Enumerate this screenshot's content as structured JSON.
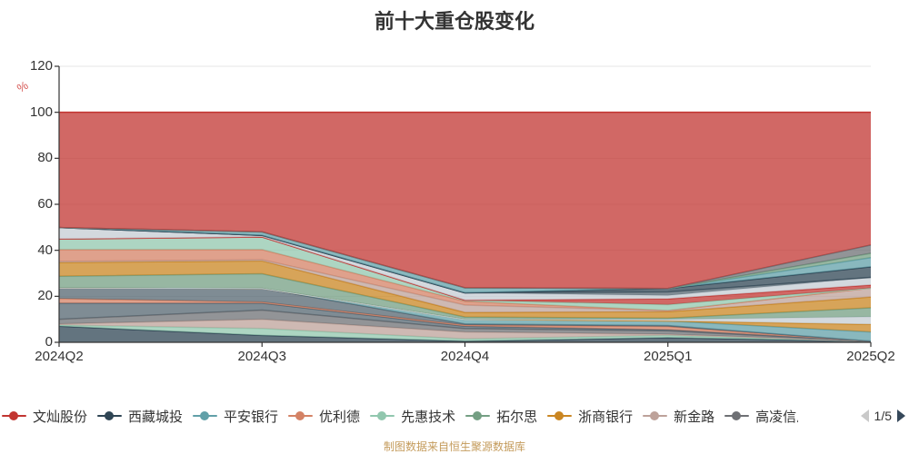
{
  "header": {
    "title": "前十大重仓股变化"
  },
  "footer": {
    "text": "制图数据来自恒生聚源数据库",
    "color": "#c49b5b"
  },
  "legend": {
    "items": [
      {
        "label": "文灿股份",
        "color": "#c23531"
      },
      {
        "label": "西藏城投",
        "color": "#2f4554"
      },
      {
        "label": "平安银行",
        "color": "#61a0a8"
      },
      {
        "label": "优利德",
        "color": "#d48265"
      },
      {
        "label": "先惠技术",
        "color": "#91c7ae"
      },
      {
        "label": "拓尔思",
        "color": "#749f83"
      },
      {
        "label": "浙商银行",
        "color": "#ca8622"
      },
      {
        "label": "新金路",
        "color": "#bda29a"
      },
      {
        "label": "高凌信息",
        "color": "#6e7074"
      }
    ],
    "pager": {
      "label": "1/5",
      "prev_color": "#c9c9c9",
      "next_color": "#36485a"
    }
  },
  "colors": {
    "axis": "#333333",
    "grid": "#e6e6e6",
    "tick_label": "#333333",
    "y_name": "#d75a57"
  },
  "chart_data": {
    "type": "area",
    "stacked": true,
    "title": "前十大重仓股变化",
    "x": [
      "2024Q2",
      "2024Q3",
      "2024Q4",
      "2025Q1",
      "2025Q2"
    ],
    "xlabel": "",
    "ylabel": "%",
    "ylim": [
      0,
      120
    ],
    "y_ticks": [
      0,
      20,
      40,
      60,
      80,
      100,
      120
    ],
    "grid": true,
    "legend_position": "bottom",
    "total_each_quarter": 100,
    "series": [
      {
        "name": "西藏城投",
        "color": "#2f4554",
        "values": [
          7,
          3,
          0.5,
          2,
          0.5
        ]
      },
      {
        "name": "",
        "color": "#91c7ae",
        "values": [
          0.5,
          3,
          1,
          1,
          0
        ]
      },
      {
        "name": "",
        "color": "#bda29a",
        "values": [
          0.5,
          4,
          3,
          0.5,
          0
        ]
      },
      {
        "name": "高凌信息",
        "color": "#6e7074",
        "values": [
          2,
          4,
          1.5,
          1.5,
          0
        ]
      },
      {
        "name": "",
        "color": "#546570",
        "values": [
          7,
          3,
          1,
          0.5,
          0
        ]
      },
      {
        "name": "",
        "color": "#d48265",
        "values": [
          2,
          0.5,
          0.5,
          1.3,
          0
        ]
      },
      {
        "name": "",
        "color": "#546570",
        "values": [
          4.7,
          6,
          0.5,
          0.5,
          0
        ]
      },
      {
        "name": "平安银行",
        "color": "#61a0a8",
        "values": [
          0,
          0,
          2,
          2,
          4
        ]
      },
      {
        "name": "",
        "color": "#ca8622",
        "values": [
          0,
          0,
          0,
          0,
          3.3
        ]
      },
      {
        "name": "",
        "color": "#c4ccd3",
        "values": [
          0,
          0,
          0,
          0.7,
          3.3
        ]
      },
      {
        "name": "拓尔思",
        "color": "#749f83",
        "values": [
          5,
          6.3,
          1,
          0.5,
          3.9
        ]
      },
      {
        "name": "浙商银行",
        "color": "#ca8622",
        "values": [
          6,
          5.6,
          2,
          2.8,
          4.7
        ]
      },
      {
        "name": "新金路",
        "color": "#bda29a",
        "values": [
          0.5,
          0.5,
          3.2,
          0.5,
          3.9
        ]
      },
      {
        "name": "优利德",
        "color": "#d48265",
        "values": [
          5.1,
          4.4,
          1.6,
          0,
          0
        ]
      },
      {
        "name": "先惠技术",
        "color": "#91c7ae",
        "values": [
          4.6,
          5.5,
          0.5,
          2.6,
          0
        ]
      },
      {
        "name": "",
        "color": "#c23531",
        "values": [
          0,
          0,
          0,
          2.5,
          1.3
        ]
      },
      {
        "name": "",
        "color": "#c4ccd3",
        "values": [
          5,
          0.7,
          3.2,
          1.5,
          3.3
        ]
      },
      {
        "name": "",
        "color": "#546570",
        "values": [
          0,
          0,
          0,
          1.5,
          0
        ]
      },
      {
        "name": "",
        "color": "#2f4554",
        "values": [
          0,
          0,
          0,
          1.5,
          4.6
        ]
      },
      {
        "name": "",
        "color": "#61a0a8",
        "values": [
          0,
          1.5,
          2.2,
          0,
          4
        ]
      },
      {
        "name": "",
        "color": "#749f83",
        "values": [
          0,
          0,
          0,
          0,
          1.9
        ]
      },
      {
        "name": "",
        "color": "#6e7074",
        "values": [
          0,
          0,
          0,
          0,
          3.6
        ]
      },
      {
        "name": "文灿股份",
        "color": "#c23531",
        "values": [
          50.1,
          52,
          76.3,
          76.6,
          57.7
        ]
      }
    ]
  }
}
